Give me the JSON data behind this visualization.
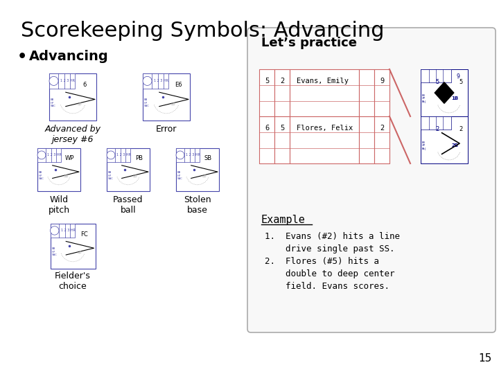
{
  "title": "Scorekeeping Symbols: Advancing",
  "bullet": "Advancing",
  "panel_title": "Let’s practice",
  "panel_bg": "#f5f5f5",
  "panel_border": "#aaaaaa",
  "scorecard_color": "#4444aa",
  "path_color": "#cc6666",
  "diamond_fill": "#000000",
  "table_rows": [
    {
      "num": "5",
      "jersey": "2",
      "name": "Evans, Emily",
      "inning": "9"
    },
    {
      "num": "6",
      "jersey": "5",
      "name": "Flores, Felix",
      "inning": "2"
    }
  ],
  "example_title": "Example",
  "example_lines": [
    "1.  Evans (#2) hits a line",
    "    drive single past SS.",
    "2.  Flores (#5) hits a",
    "    double to deep center",
    "    field. Evans scores."
  ],
  "page_num": "15",
  "left_items": [
    {
      "label": "Advanced by\njersey #6",
      "code": "6",
      "italic": true
    },
    {
      "label": "Error",
      "code": "E6",
      "italic": false
    },
    {
      "label": "Wild\npitch",
      "code": "WP",
      "italic": false
    },
    {
      "label": "Passed\nball",
      "code": "PB",
      "italic": false
    },
    {
      "label": "Stolen\nbase",
      "code": "SB",
      "italic": false
    },
    {
      "label": "Fielder's\nchoice",
      "code": "FC",
      "italic": false
    }
  ]
}
